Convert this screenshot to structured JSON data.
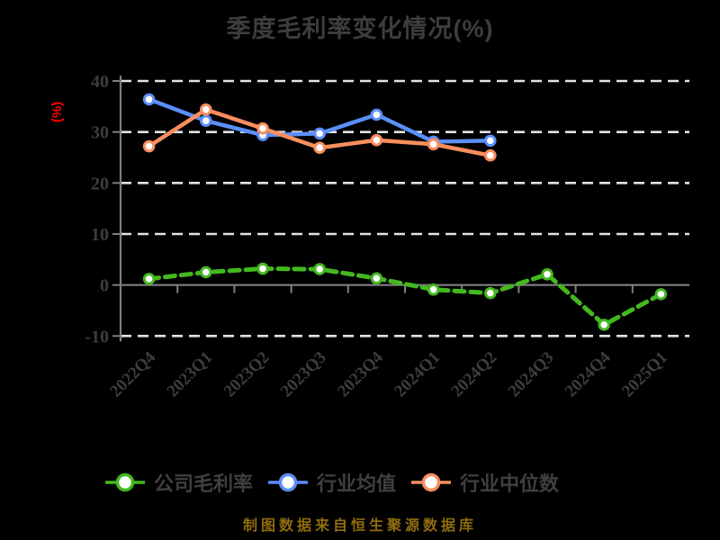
{
  "title": "季度毛利率变化情况(%)",
  "footer": {
    "text": "制图数据来自恒生聚源数据库",
    "color": "#8e6c10"
  },
  "colors": {
    "background": "#000000",
    "title_text": "#3d3d3d",
    "axis": "#7f7f7f",
    "gridline": "#e2e2e2",
    "ylabel": "#ff0000",
    "series_company": "#43b81f",
    "series_industry_mean": "#5b8ff9",
    "series_industry_median": "#f98e5e"
  },
  "chart_data": {
    "type": "line",
    "title": "季度毛利率变化情况(%)",
    "ylabel": "(%)",
    "xlabel": "",
    "ylim": [
      -10,
      40
    ],
    "yticks": [
      40,
      30,
      20,
      10,
      0,
      -10
    ],
    "grid": "horizontal dashed",
    "legend_position": "bottom",
    "categories": [
      "2022Q4",
      "2023Q1",
      "2023Q2",
      "2023Q3",
      "2023Q4",
      "2024Q1",
      "2024Q2",
      "2024Q3",
      "2024Q4",
      "2025Q1"
    ],
    "series": [
      {
        "name": "公司毛利率",
        "color": "#43b81f",
        "dashed": true,
        "values": [
          1.2,
          2.5,
          3.2,
          3.1,
          1.3,
          -0.9,
          -1.6,
          2.1,
          -7.8,
          -1.8
        ]
      },
      {
        "name": "行业均值",
        "color": "#5b8ff9",
        "dashed": false,
        "values": [
          36.4,
          32.2,
          29.4,
          29.7,
          33.4,
          28.1,
          28.3,
          null,
          null,
          null
        ]
      },
      {
        "name": "行业中位数",
        "color": "#f98e5e",
        "dashed": false,
        "values": [
          27.2,
          34.4,
          30.7,
          26.9,
          28.4,
          27.6,
          25.4,
          null,
          null,
          null
        ]
      }
    ]
  }
}
